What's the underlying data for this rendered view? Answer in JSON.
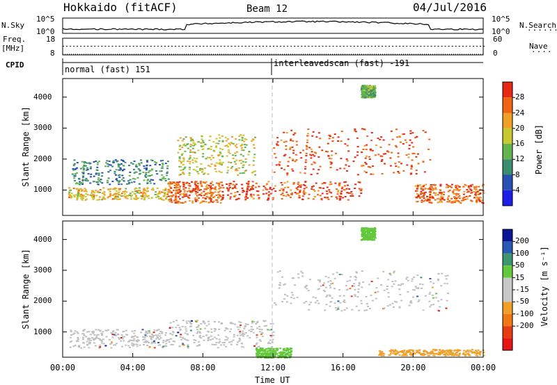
{
  "header": {
    "station": "Hokkaido (fitACF)",
    "beam": "Beam 12",
    "date": "04/Jul/2016"
  },
  "strips": {
    "nsky_label": "N.Sky",
    "nsearch_label": "N.Search",
    "nsky_ticks": [
      "10^5",
      "10^0"
    ],
    "nsearch_ticks": [
      "10^5",
      "10^0"
    ],
    "freq_label_1": "Freq.",
    "freq_label_2": "[MHz]",
    "freq_ticks": [
      "18",
      "8"
    ],
    "nave_label": "Nave",
    "nave_ticks": [
      "60",
      "0"
    ],
    "cpid_label": "CPID",
    "cpid_modes": [
      "normal (fast) 151",
      "interleavedscan (fast) -191"
    ]
  },
  "colors": {
    "power_scale": [
      "#1e1ee6",
      "#2850b4",
      "#3c8c6e",
      "#64b450",
      "#c8c832",
      "#f0a028",
      "#f06414",
      "#e62814"
    ],
    "velocity_scale": [
      "#0a1496",
      "#285ab4",
      "#3c966e",
      "#64c83c",
      "#c8c8c8",
      "#c8c8c8",
      "#f0a028",
      "#f07814",
      "#e63c14",
      "#e61414"
    ],
    "ground_scatter": "#c0c0c0"
  },
  "chart_data": [
    {
      "type": "heatmap",
      "panel": "power",
      "ylabel": "Slant Range [km]",
      "yticks": [
        "1000",
        "2000",
        "3000",
        "4000"
      ],
      "ylim": [
        180,
        4600
      ],
      "xlim": [
        0,
        24
      ],
      "colorbar": {
        "label": "Power [dB]",
        "ticks": [
          "4",
          "8",
          "12",
          "16",
          "20",
          "24",
          "28"
        ],
        "range": [
          0,
          32
        ]
      },
      "regions": [
        {
          "t": [
            0.3,
            6
          ],
          "r": [
            700,
            1100
          ],
          "level": 20
        },
        {
          "t": [
            0.5,
            6
          ],
          "r": [
            1200,
            2000
          ],
          "level": 10
        },
        {
          "t": [
            6,
            9
          ],
          "r": [
            600,
            1300
          ],
          "level": 26
        },
        {
          "t": [
            6.5,
            11
          ],
          "r": [
            1500,
            2800
          ],
          "level": 18
        },
        {
          "t": [
            9,
            17
          ],
          "r": [
            700,
            1300
          ],
          "level": 28
        },
        {
          "t": [
            12,
            21
          ],
          "r": [
            1500,
            3000
          ],
          "level": 28
        },
        {
          "t": [
            20,
            24
          ],
          "r": [
            600,
            1200
          ],
          "level": 26
        },
        {
          "t": [
            17,
            17.8
          ],
          "r": [
            4000,
            4400
          ],
          "level": 14
        }
      ]
    },
    {
      "type": "heatmap",
      "panel": "velocity",
      "ylabel": "Slant Range [km]",
      "yticks": [
        "1000",
        "2000",
        "3000",
        "4000"
      ],
      "ylim": [
        180,
        4600
      ],
      "xlim": [
        0,
        24
      ],
      "xlabel": "Time UT",
      "xticks": [
        "00:00",
        "04:00",
        "08:00",
        "12:00",
        "16:00",
        "20:00",
        "00:00"
      ],
      "colorbar": {
        "label": "Velocity [m s⁻¹]",
        "ticks": [
          "200",
          "100",
          "50",
          "15",
          "-15",
          "-50",
          "-100",
          "-200"
        ],
        "range": [
          -250,
          250
        ]
      },
      "regions": [
        {
          "t": [
            0.3,
            6
          ],
          "r": [
            500,
            1100
          ],
          "type": "ground"
        },
        {
          "t": [
            6,
            12
          ],
          "r": [
            500,
            1400
          ],
          "type": "ground"
        },
        {
          "t": [
            12,
            22
          ],
          "r": [
            1700,
            3000
          ],
          "type": "ground"
        },
        {
          "t": [
            11,
            13
          ],
          "r": [
            180,
            500
          ],
          "velocity": 60
        },
        {
          "t": [
            18,
            24
          ],
          "r": [
            250,
            450
          ],
          "velocity": -60
        },
        {
          "t": [
            17,
            17.8
          ],
          "r": [
            4000,
            4400
          ],
          "velocity": 40
        }
      ]
    }
  ]
}
